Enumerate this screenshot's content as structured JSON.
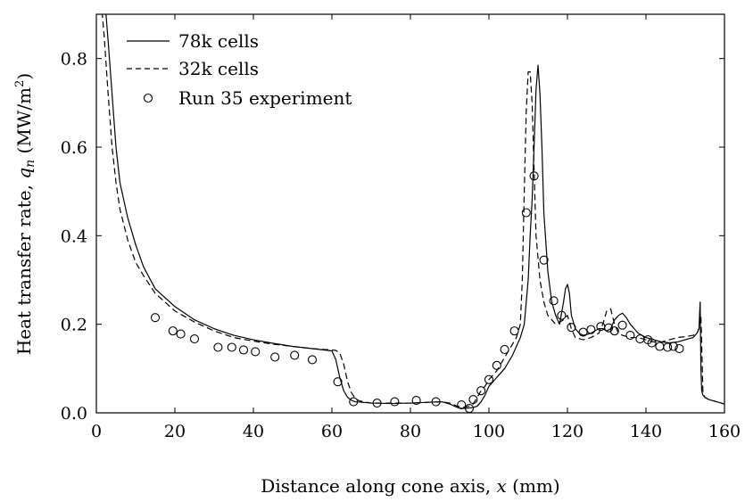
{
  "chart_data": {
    "type": "line",
    "xlabel": "Distance along cone axis, x (mm)",
    "ylabel": "Heat transfer rate, q_n (MW/m^2)",
    "xlabel_parts": {
      "pre": "Distance along cone axis, ",
      "var": "x",
      "post": " (mm)"
    },
    "ylabel_parts": {
      "pre": "Heat transfer rate, ",
      "var": "q",
      "sub": "n",
      "unit_open": " (MW/m",
      "sup": "2",
      "unit_close": ")"
    },
    "xlim": [
      0,
      160
    ],
    "ylim": [
      0,
      0.9
    ],
    "xticks": [
      0,
      20,
      40,
      60,
      80,
      100,
      120,
      140,
      160
    ],
    "yticks": [
      0.0,
      0.2,
      0.4,
      0.6,
      0.8
    ],
    "xtick_labels": [
      "0",
      "20",
      "40",
      "60",
      "80",
      "100",
      "120",
      "140",
      "160"
    ],
    "ytick_labels": [
      "0.0",
      "0.2",
      "0.4",
      "0.6",
      "0.8"
    ],
    "grid": false,
    "legend_position": "top-left",
    "series": [
      {
        "name": "78k cells",
        "style": "solid",
        "x": [
          2,
          3,
          4,
          5,
          6,
          8,
          10,
          12,
          15,
          20,
          25,
          30,
          35,
          40,
          45,
          50,
          55,
          58,
          60,
          61,
          62,
          63,
          64,
          65,
          66,
          70,
          75,
          80,
          85,
          88,
          90,
          92,
          93,
          94,
          95,
          96,
          97,
          98,
          99,
          100,
          101,
          102,
          103,
          104,
          105,
          106,
          107,
          107.5,
          108,
          109,
          110,
          110.5,
          111,
          111.5,
          112,
          112.5,
          113,
          113.5,
          114,
          115,
          116,
          117,
          118,
          119,
          119.5,
          120,
          120.5,
          121,
          122,
          123,
          124,
          125,
          126,
          127,
          128,
          129,
          130,
          131,
          132,
          133,
          134,
          135,
          136,
          137,
          138,
          140,
          142,
          144,
          146,
          148,
          150,
          152,
          153,
          153.5,
          153.8,
          154,
          154.2,
          154.5,
          155,
          156,
          158,
          160
        ],
        "y": [
          0.95,
          0.84,
          0.72,
          0.6,
          0.52,
          0.44,
          0.38,
          0.33,
          0.28,
          0.24,
          0.21,
          0.19,
          0.175,
          0.165,
          0.157,
          0.15,
          0.145,
          0.142,
          0.14,
          0.12,
          0.08,
          0.05,
          0.035,
          0.028,
          0.025,
          0.022,
          0.021,
          0.022,
          0.024,
          0.025,
          0.02,
          0.012,
          0.01,
          0.01,
          0.011,
          0.012,
          0.015,
          0.025,
          0.04,
          0.06,
          0.07,
          0.08,
          0.09,
          0.1,
          0.115,
          0.13,
          0.15,
          0.16,
          0.17,
          0.2,
          0.3,
          0.4,
          0.48,
          0.6,
          0.73,
          0.785,
          0.72,
          0.6,
          0.45,
          0.32,
          0.25,
          0.22,
          0.2,
          0.25,
          0.28,
          0.29,
          0.27,
          0.22,
          0.19,
          0.18,
          0.175,
          0.177,
          0.18,
          0.185,
          0.19,
          0.19,
          0.185,
          0.19,
          0.21,
          0.22,
          0.225,
          0.215,
          0.2,
          0.19,
          0.18,
          0.17,
          0.165,
          0.16,
          0.158,
          0.16,
          0.165,
          0.17,
          0.18,
          0.19,
          0.25,
          0.1,
          0.05,
          0.04,
          0.035,
          0.03,
          0.025,
          0.02
        ]
      },
      {
        "name": "32k cells",
        "style": "dashed",
        "x": [
          1,
          2,
          3,
          4,
          5,
          6,
          8,
          10,
          12,
          15,
          20,
          25,
          30,
          35,
          40,
          45,
          50,
          55,
          58,
          60,
          61,
          62,
          63,
          64,
          65,
          66,
          67,
          70,
          75,
          80,
          85,
          88,
          90,
          92,
          93,
          94,
          95,
          96,
          97,
          98,
          99,
          100,
          101,
          102,
          103,
          104,
          105,
          106,
          107,
          108,
          108.5,
          109,
          109.5,
          110,
          110.5,
          111,
          111.5,
          112,
          113,
          114,
          115,
          116,
          117,
          118,
          119,
          120,
          121,
          122,
          124,
          126,
          128,
          129,
          130,
          131,
          132,
          133,
          134,
          136,
          138,
          140,
          142,
          144,
          146,
          148,
          150,
          152,
          153,
          153.5,
          154,
          154.5,
          155,
          156,
          158,
          160
        ],
        "y": [
          0.95,
          0.85,
          0.72,
          0.6,
          0.52,
          0.46,
          0.39,
          0.34,
          0.31,
          0.27,
          0.23,
          0.205,
          0.185,
          0.17,
          0.162,
          0.155,
          0.15,
          0.145,
          0.143,
          0.142,
          0.141,
          0.135,
          0.11,
          0.07,
          0.045,
          0.032,
          0.027,
          0.022,
          0.022,
          0.022,
          0.024,
          0.025,
          0.022,
          0.015,
          0.013,
          0.013,
          0.015,
          0.02,
          0.035,
          0.05,
          0.06,
          0.075,
          0.085,
          0.095,
          0.11,
          0.125,
          0.14,
          0.155,
          0.17,
          0.2,
          0.3,
          0.5,
          0.68,
          0.77,
          0.77,
          0.7,
          0.55,
          0.4,
          0.3,
          0.25,
          0.22,
          0.21,
          0.2,
          0.205,
          0.21,
          0.22,
          0.19,
          0.17,
          0.165,
          0.17,
          0.18,
          0.2,
          0.23,
          0.235,
          0.2,
          0.18,
          0.175,
          0.17,
          0.17,
          0.165,
          0.16,
          0.16,
          0.165,
          0.17,
          0.172,
          0.175,
          0.18,
          0.19,
          0.22,
          0.05,
          0.035,
          0.03,
          0.025,
          0.02
        ]
      },
      {
        "name": "Run 35 experiment",
        "style": "markers",
        "x": [
          15,
          19.5,
          21.5,
          25,
          31,
          34.5,
          37.5,
          40.5,
          45.5,
          50.5,
          55,
          61.5,
          65.5,
          71.5,
          76,
          81.5,
          86.5,
          93,
          95,
          96,
          98,
          100,
          102,
          104,
          106.5,
          109.5,
          111.5,
          114,
          116.5,
          118.5,
          121,
          124,
          126,
          128.5,
          130.5,
          132,
          134,
          136,
          138.5,
          140.5,
          141.5,
          143.5,
          145.5,
          147,
          148.5
        ],
        "y": [
          0.215,
          0.185,
          0.178,
          0.167,
          0.148,
          0.148,
          0.142,
          0.138,
          0.126,
          0.13,
          0.12,
          0.07,
          0.025,
          0.022,
          0.025,
          0.028,
          0.025,
          0.018,
          0.01,
          0.03,
          0.05,
          0.075,
          0.107,
          0.143,
          0.185,
          0.452,
          0.535,
          0.345,
          0.253,
          0.22,
          0.193,
          0.182,
          0.188,
          0.195,
          0.192,
          0.185,
          0.198,
          0.175,
          0.167,
          0.165,
          0.158,
          0.15,
          0.148,
          0.15,
          0.145
        ]
      }
    ]
  }
}
